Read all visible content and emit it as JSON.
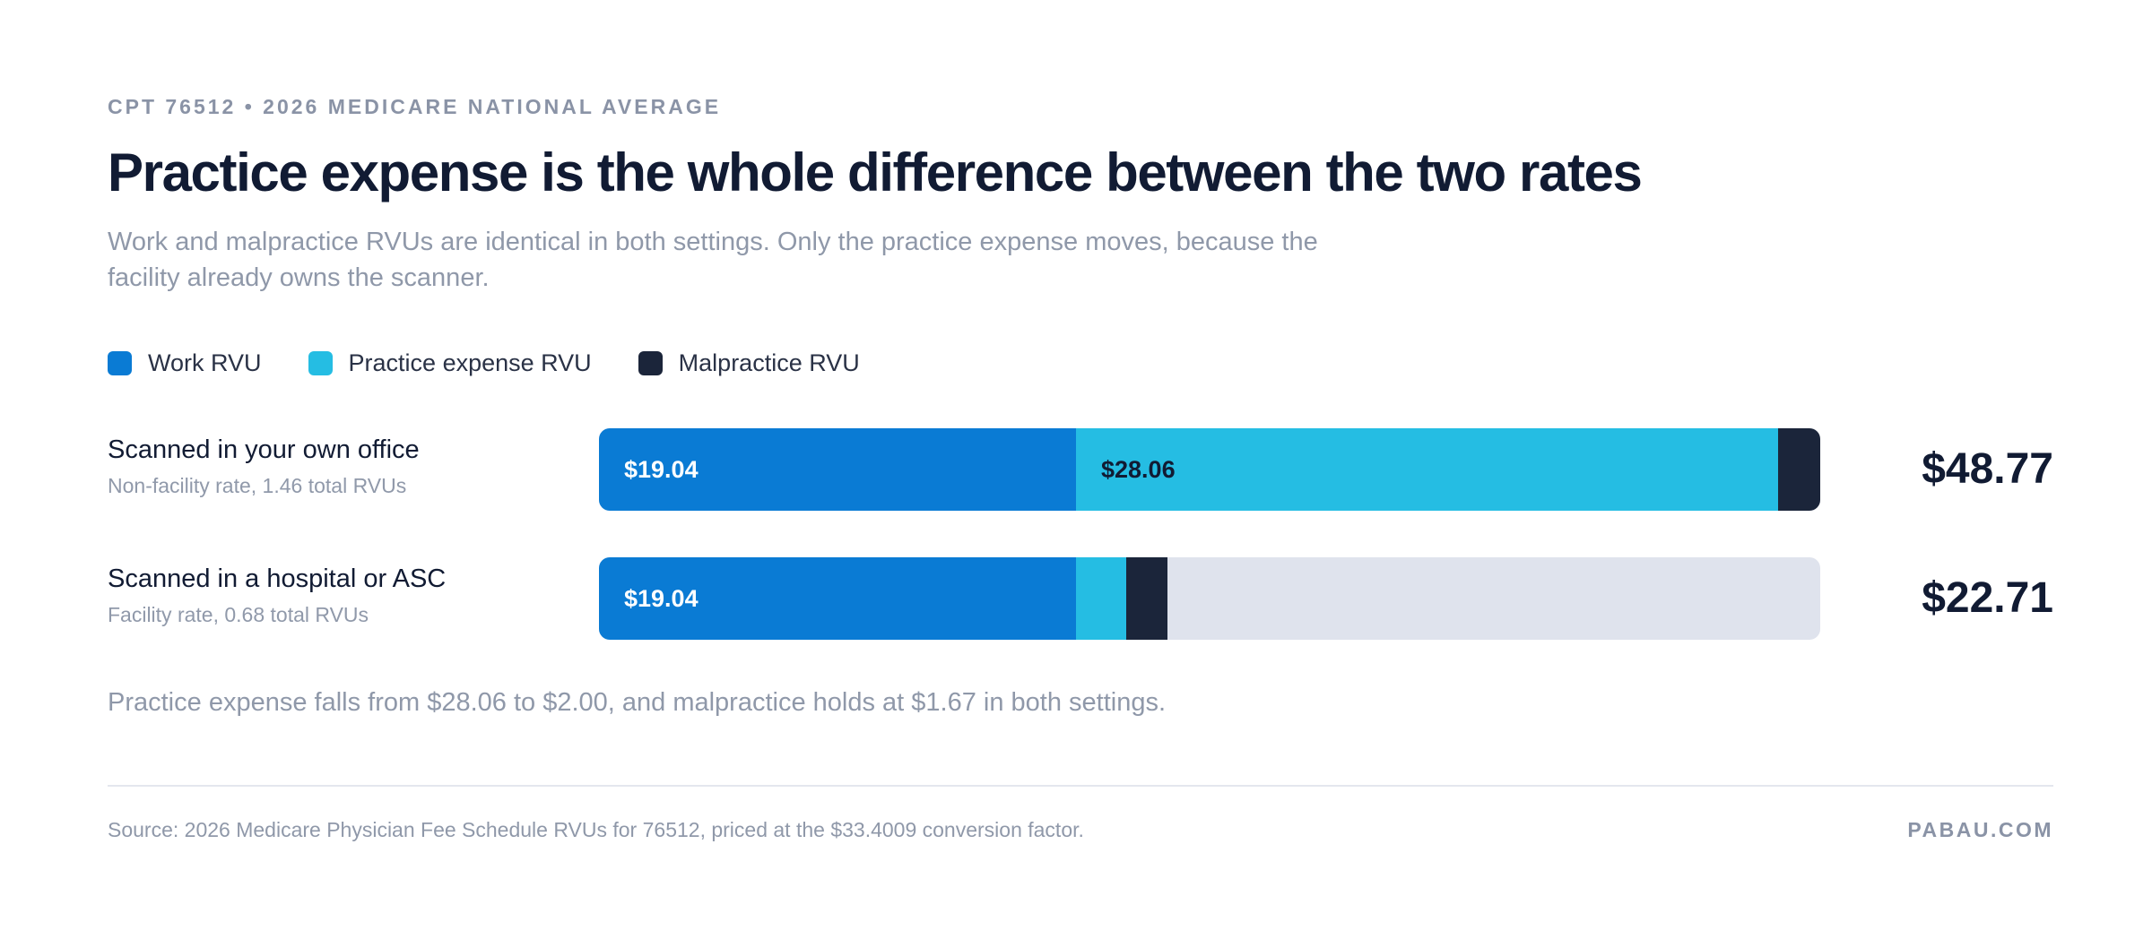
{
  "header": {
    "eyebrow": "CPT 76512 • 2026 MEDICARE NATIONAL AVERAGE",
    "title": "Practice expense is the whole difference between the two rates",
    "subtitle": "Work and malpractice RVUs are identical in both settings. Only the practice expense moves, because the facility already owns the scanner."
  },
  "colors": {
    "work": "#0a7bd4",
    "practice_expense": "#25bde3",
    "malpractice": "#1b253a",
    "track": "#dfe3ed"
  },
  "chart_data": {
    "type": "bar",
    "orientation": "horizontal",
    "stacked": true,
    "xlim": [
      0,
      48.77
    ],
    "categories": [
      "Scanned in your own office",
      "Scanned in a hospital or ASC"
    ],
    "category_subtitles": [
      "Non-facility rate, 1.46 total RVUs",
      "Facility rate, 0.68 total RVUs"
    ],
    "series": [
      {
        "name": "Work RVU",
        "color_key": "work",
        "values": [
          19.04,
          19.04
        ],
        "labels": [
          "$19.04",
          "$19.04"
        ]
      },
      {
        "name": "Practice expense RVU",
        "color_key": "practice_expense",
        "values": [
          28.06,
          2.0
        ],
        "labels": [
          "$28.06",
          ""
        ]
      },
      {
        "name": "Malpractice RVU",
        "color_key": "malpractice",
        "values": [
          1.67,
          1.67
        ],
        "labels": [
          "",
          ""
        ]
      }
    ],
    "totals": [
      "$48.77",
      "$22.71"
    ],
    "legend": "top-left"
  },
  "note": "Practice expense falls from $28.06 to $2.00, and malpractice holds at $1.67 in both settings.",
  "footer": {
    "source": "Source: 2026 Medicare Physician Fee Schedule RVUs for 76512, priced at the $33.4009 conversion factor.",
    "brand": "PABAU.COM"
  }
}
